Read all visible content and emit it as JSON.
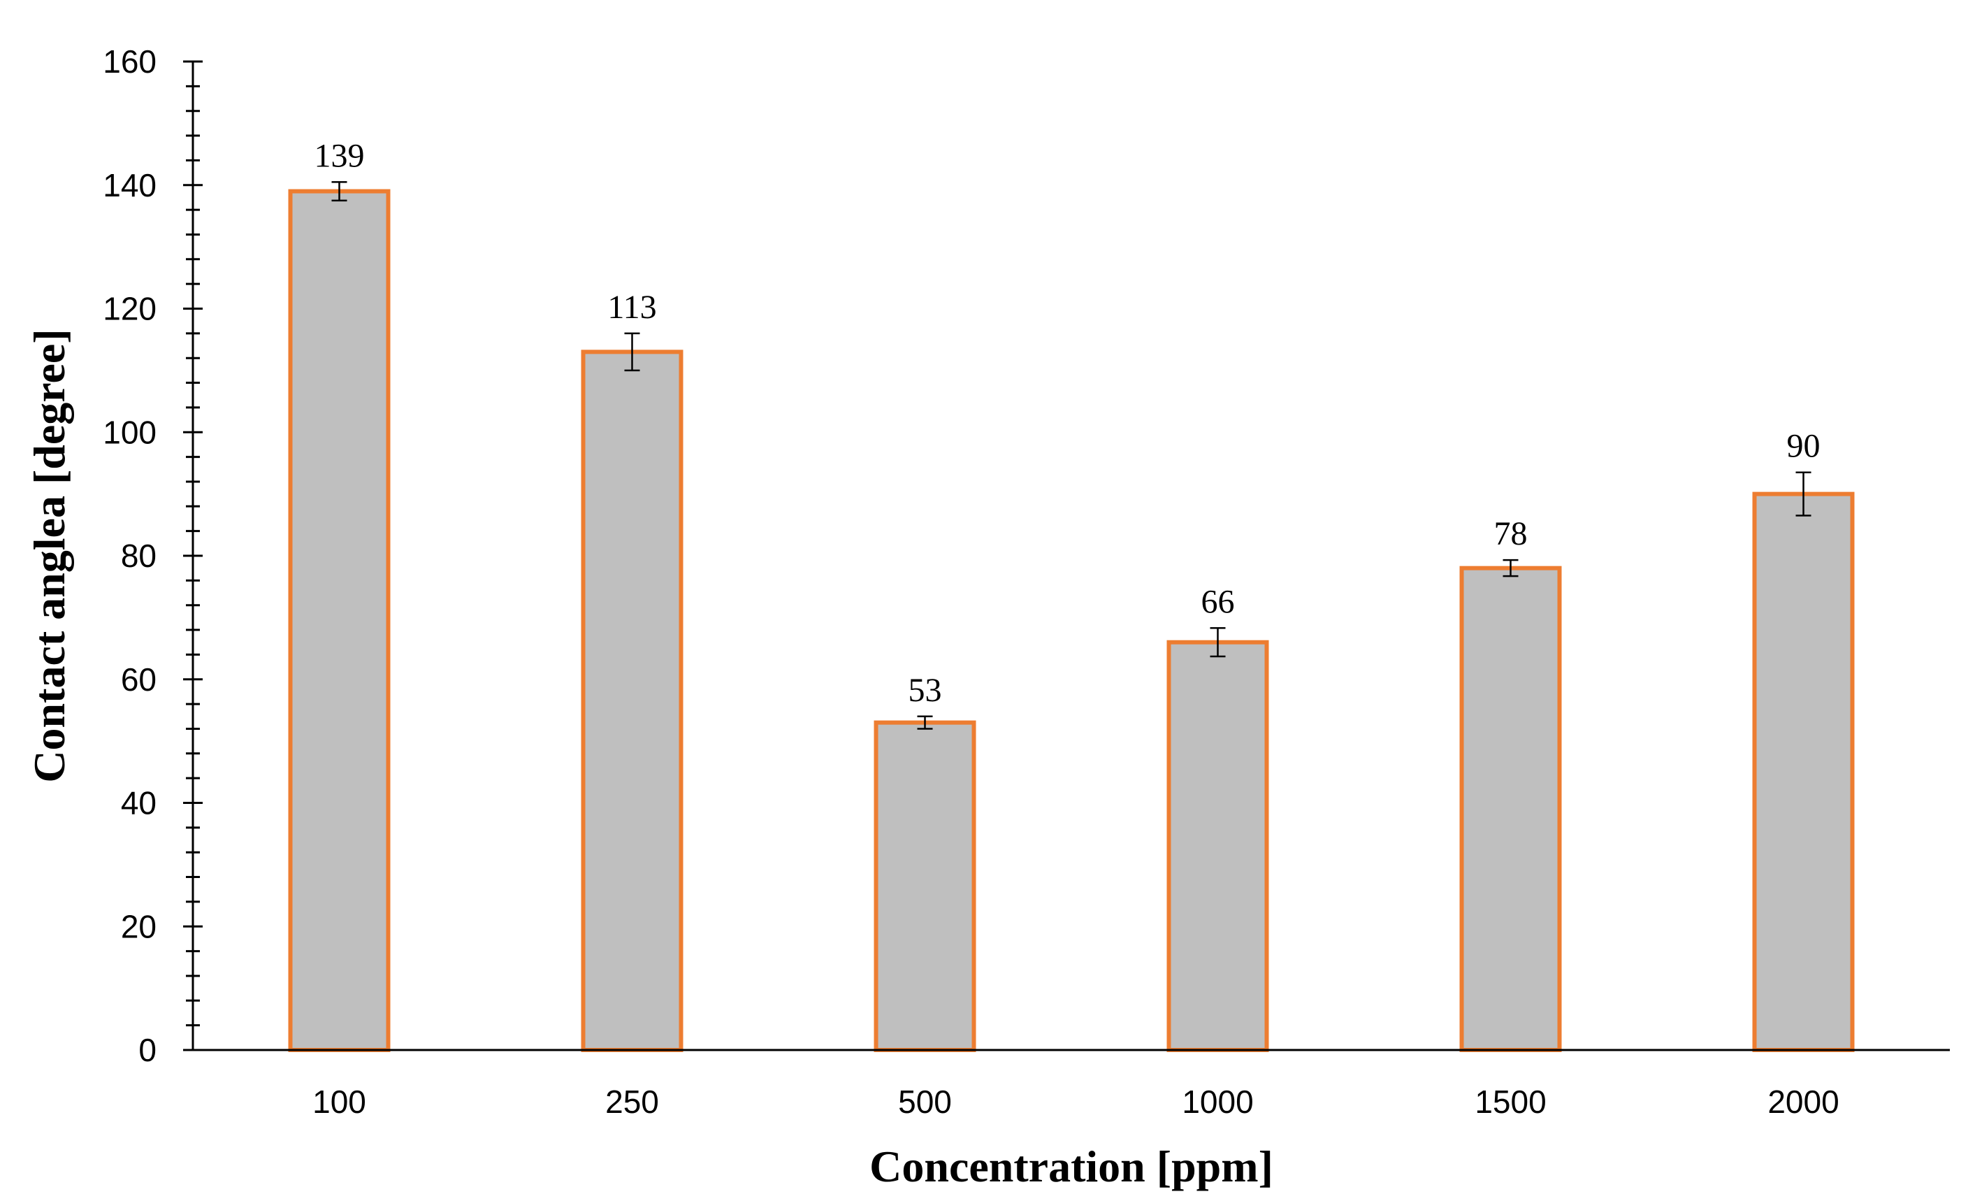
{
  "chart_data": {
    "type": "bar",
    "categories": [
      "100",
      "250",
      "500",
      "1000",
      "1500",
      "2000"
    ],
    "values": [
      139,
      113,
      53,
      66,
      78,
      90
    ],
    "error": [
      1.5,
      3.0,
      1.0,
      2.3,
      1.3,
      3.5
    ],
    "data_labels": [
      "139",
      "113",
      "53",
      "66",
      "78",
      "90"
    ],
    "title": "",
    "xlabel": "Concentration [ppm]",
    "ylabel": "Contact anglea [degree]",
    "ylim": [
      0,
      160
    ],
    "y_major_step": 20,
    "y_minor_step": 4,
    "y_ticks": [
      "0",
      "20",
      "40",
      "60",
      "80",
      "100",
      "120",
      "140",
      "160"
    ],
    "grid": false,
    "legend": "none",
    "colors": {
      "bar_fill": "#bfbfbf",
      "bar_border": "#ed7d31",
      "axis": "#000000",
      "error_bar": "#000000"
    }
  }
}
